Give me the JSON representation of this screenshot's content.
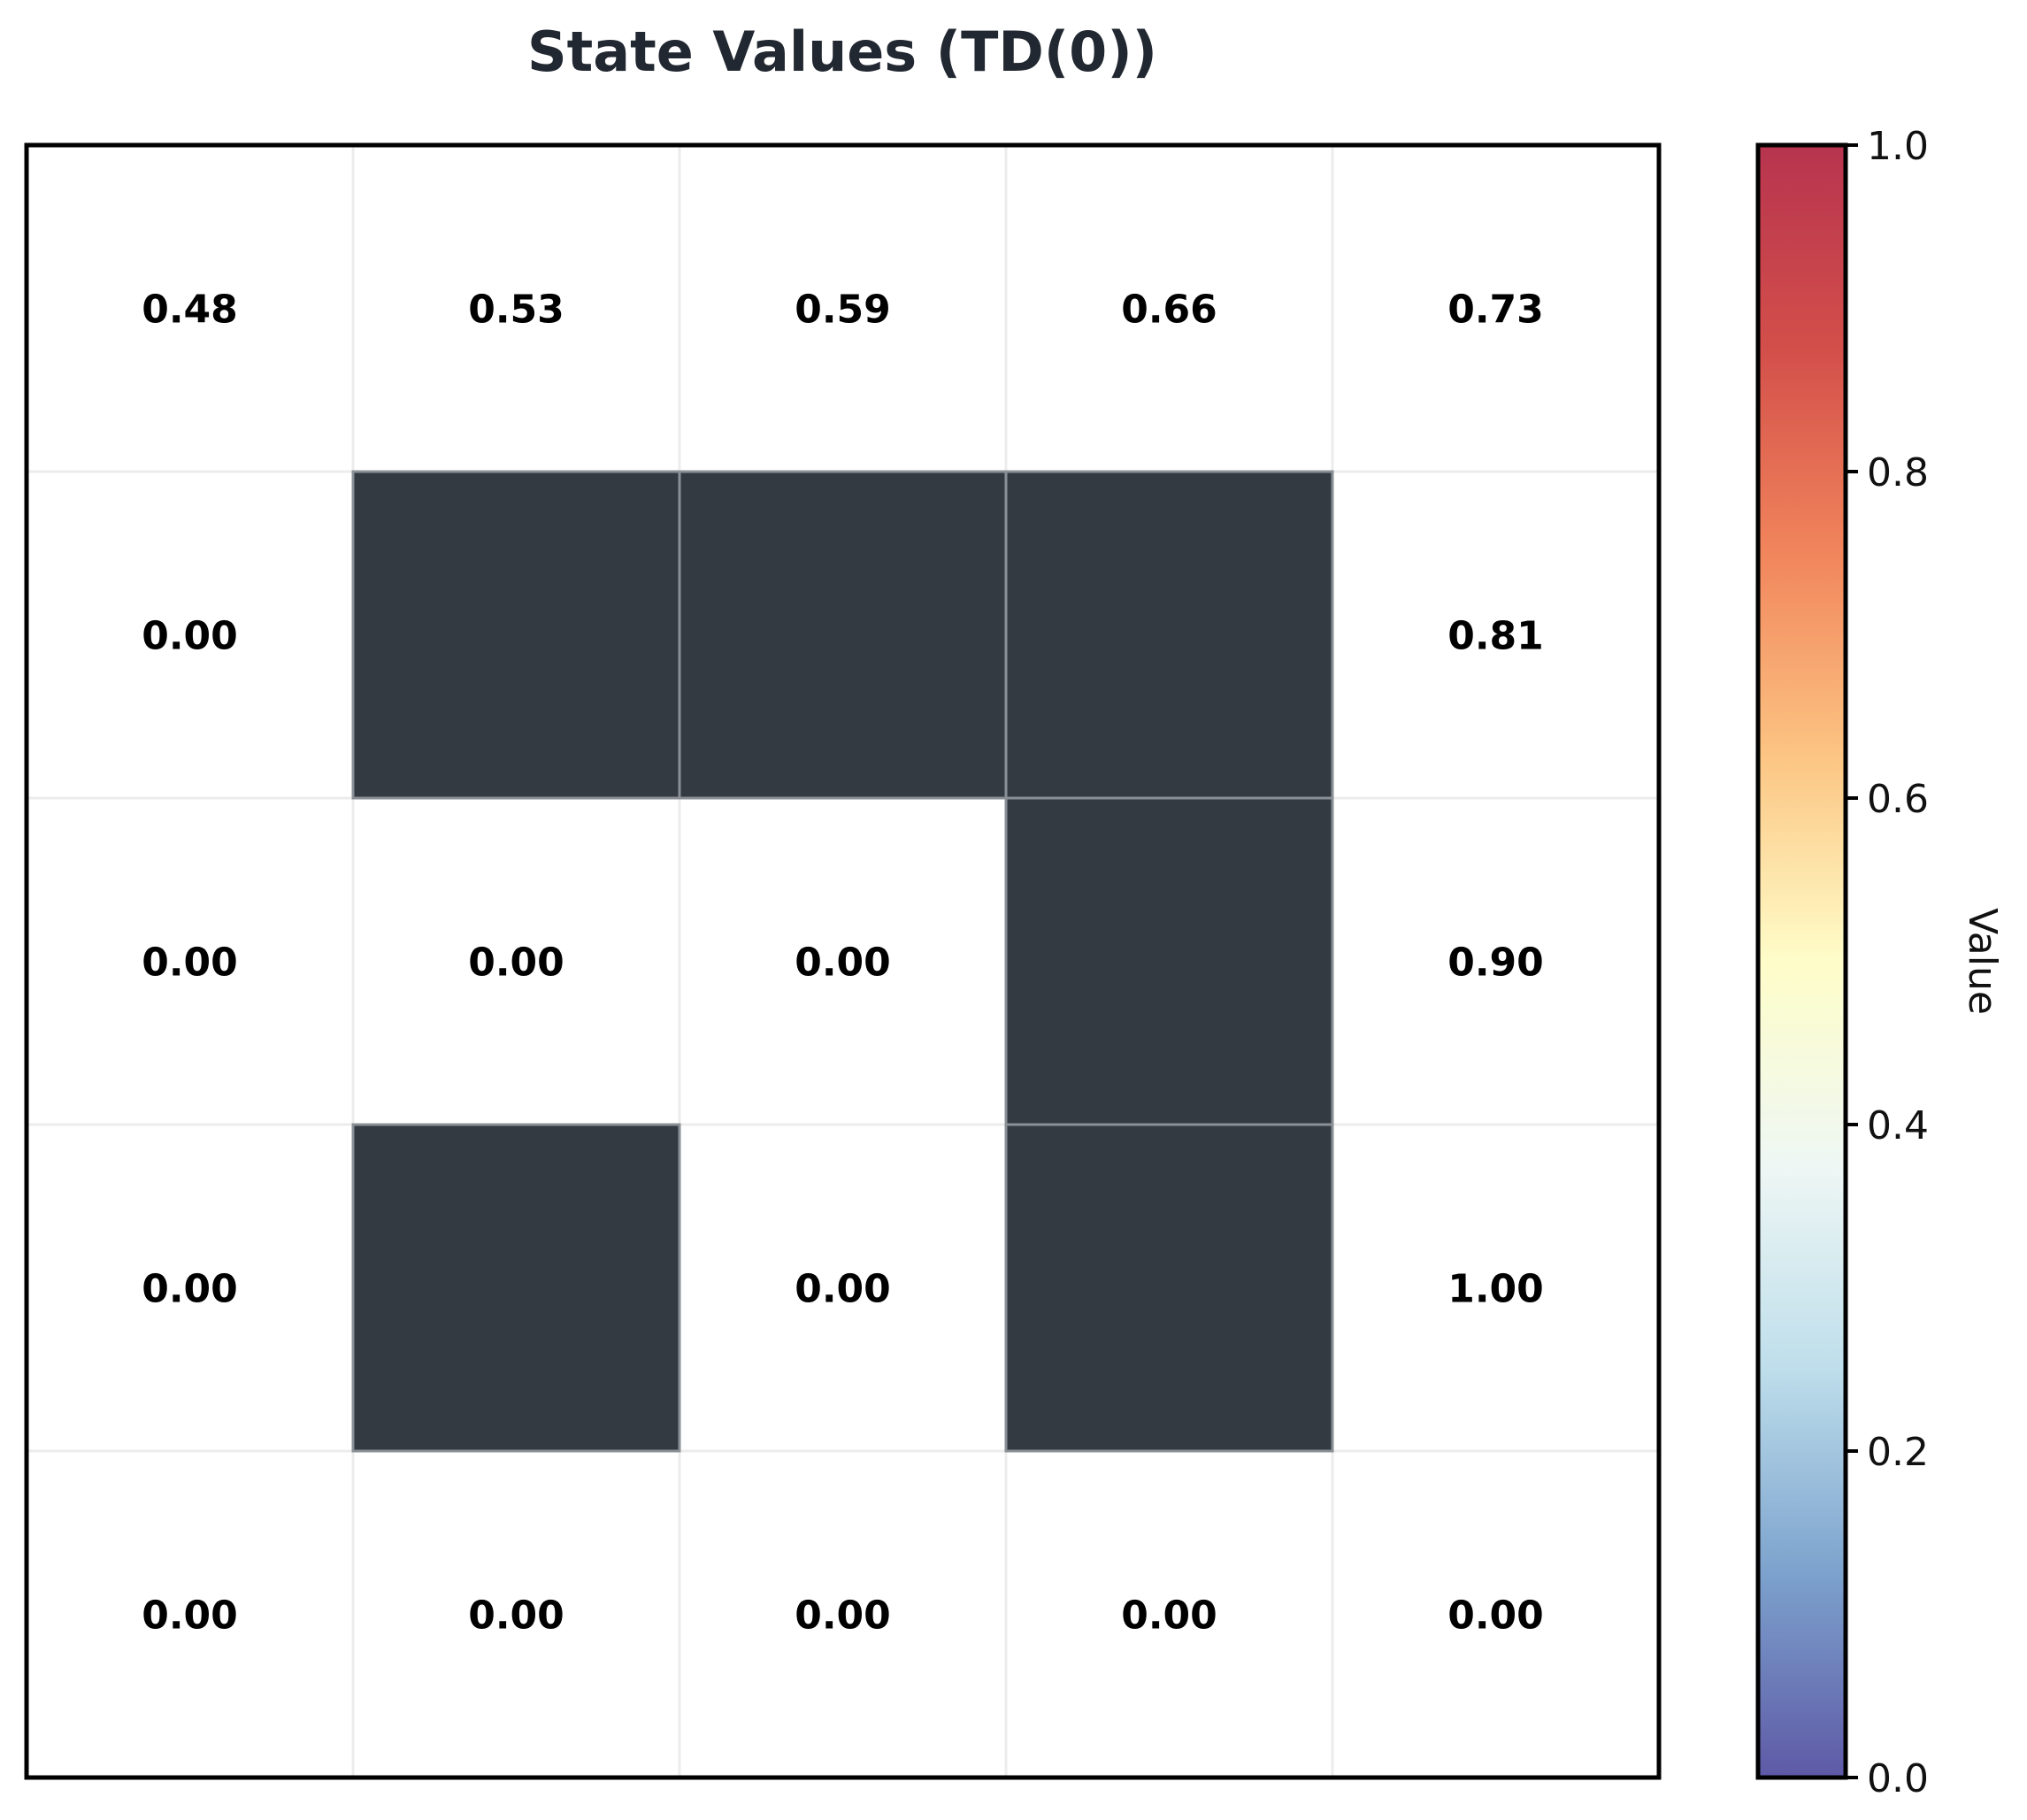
{
  "chart_data": {
    "type": "heatmap",
    "title": "State Values (TD(0))",
    "rows": 5,
    "cols": 5,
    "values": [
      [
        0.48,
        0.53,
        0.59,
        0.66,
        0.73
      ],
      [
        0.0,
        null,
        null,
        null,
        0.81
      ],
      [
        0.0,
        0.0,
        0.0,
        null,
        0.9
      ],
      [
        0.0,
        null,
        0.0,
        null,
        1.0
      ],
      [
        0.0,
        0.0,
        0.0,
        0.0,
        0.0
      ]
    ],
    "labels": [
      [
        "0.48",
        "0.53",
        "0.59",
        "0.66",
        "0.73"
      ],
      [
        "0.00",
        "",
        "",
        "",
        "0.81"
      ],
      [
        "0.00",
        "0.00",
        "0.00",
        "",
        "0.90"
      ],
      [
        "0.00",
        "",
        "0.00",
        "",
        "1.00"
      ],
      [
        "0.00",
        "0.00",
        "0.00",
        "0.00",
        "0.00"
      ]
    ],
    "walls": [
      [
        1,
        1
      ],
      [
        1,
        2
      ],
      [
        1,
        3
      ],
      [
        2,
        3
      ],
      [
        3,
        1
      ],
      [
        3,
        3
      ]
    ],
    "wall_color": "#343a42",
    "cell_color": "#ffffff",
    "grid": true,
    "colorbar": {
      "label": "Value",
      "range": [
        0,
        1
      ],
      "ticks": [
        0.0,
        0.2,
        0.4,
        0.6,
        0.8,
        1.0
      ],
      "tick_labels": [
        "0.0",
        "0.2",
        "0.4",
        "0.6",
        "0.8",
        "1.0"
      ],
      "colormap": "RdYlBu_r",
      "colormap_colors": [
        "#5e59a6",
        "#7ca2cd",
        "#bedeeb",
        "#eef7f4",
        "#fefdc9",
        "#fcc583",
        "#f1855c",
        "#d34f4a",
        "#b7344f"
      ]
    }
  }
}
